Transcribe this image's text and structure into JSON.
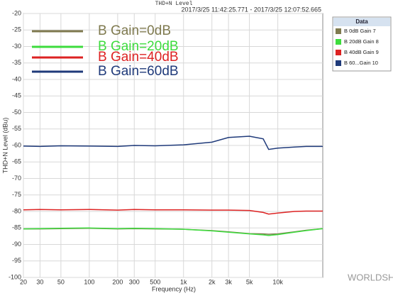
{
  "chart_data": {
    "type": "line",
    "title": "THD+N Level",
    "subtitle": "2017/3/25 11:42:25.771 - 2017/3/25 12:07:52.665",
    "x_label": "Frequency (Hz)",
    "y_label": "THD+N Level (dBu)",
    "x_log": true,
    "grid": true,
    "legend_position": "upper-left",
    "panel_title": "Data",
    "watermark": "WORLDSHOW",
    "xlim": [
      20,
      30000
    ],
    "ylim": [
      -100,
      -20
    ],
    "xticks": [
      20,
      30,
      50,
      100,
      200,
      300,
      500,
      {
        "value": 1000,
        "label": "1k"
      },
      {
        "value": 2000,
        "label": "2k"
      },
      {
        "value": 3000,
        "label": "3k"
      },
      {
        "value": 5000,
        "label": "5k"
      },
      {
        "value": 10000,
        "label": "10k"
      }
    ],
    "yticks": [
      -20,
      -25,
      -30,
      -35,
      -40,
      -45,
      -50,
      -55,
      -60,
      -65,
      -70,
      -75,
      -80,
      -85,
      -90,
      -95,
      -100
    ],
    "x": [
      20,
      30,
      50,
      100,
      200,
      300,
      500,
      1000,
      2000,
      3000,
      5000,
      7000,
      8000,
      10000,
      15000,
      20000,
      30000
    ],
    "series": [
      {
        "name": "B Gain=0dB",
        "panel_label": "B 0dB Gain 7",
        "color": "#7f7a4f",
        "values": [
          -85.3,
          -85.3,
          -85.2,
          -85.1,
          -85.3,
          -85.2,
          -85.3,
          -85.4,
          -85.8,
          -86.2,
          -86.7,
          -86.8,
          -86.9,
          -86.8,
          -86.2,
          -85.7,
          -85.2
        ]
      },
      {
        "name": "B Gain=20dB",
        "panel_label": "B 20dB Gain 8",
        "color": "#3ddc3d",
        "values": [
          -85.3,
          -85.2,
          -85.1,
          -85.0,
          -85.2,
          -85.1,
          -85.2,
          -85.4,
          -85.9,
          -86.3,
          -86.8,
          -87.1,
          -87.3,
          -87.0,
          -86.3,
          -85.8,
          -85.2
        ]
      },
      {
        "name": "B Gain=40dB",
        "panel_label": "B 40dB Gain 9",
        "color": "#dd2222",
        "values": [
          -79.5,
          -79.4,
          -79.5,
          -79.4,
          -79.6,
          -79.4,
          -79.5,
          -79.5,
          -79.6,
          -79.6,
          -79.7,
          -80.3,
          -80.8,
          -80.5,
          -80.0,
          -79.9,
          -79.9
        ]
      },
      {
        "name": "B Gain=60dB",
        "panel_label": "B 60...Gain 10",
        "color": "#1f3a7a",
        "values": [
          -60.2,
          -60.3,
          -60.1,
          -60.2,
          -60.3,
          -60.0,
          -60.1,
          -59.8,
          -59.0,
          -57.6,
          -57.2,
          -58.0,
          -61.2,
          -60.8,
          -60.5,
          -60.3,
          -60.3
        ]
      }
    ]
  }
}
